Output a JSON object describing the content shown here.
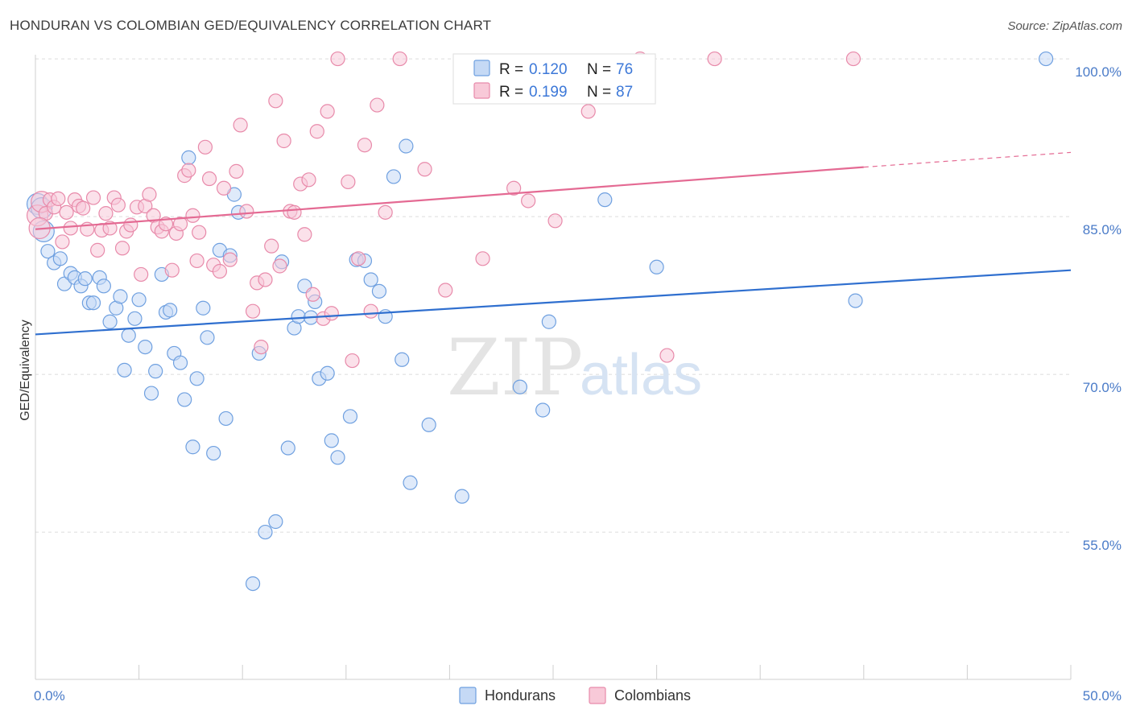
{
  "title": "HONDURAN VS COLOMBIAN GED/EQUIVALENCY CORRELATION CHART",
  "source": "Source: ZipAtlas.com",
  "watermark": {
    "zip": "ZIP",
    "atlas": "atlas"
  },
  "chart_data": {
    "type": "scatter",
    "xlabel": "",
    "ylabel": "GED/Equivalency",
    "xlim": [
      0,
      50
    ],
    "ylim": [
      41,
      101
    ],
    "x_tick_labels": {
      "left": "0.0%",
      "right": "50.0%"
    },
    "y_ticks": [
      {
        "value": 100,
        "label": "100.0%"
      },
      {
        "value": 85,
        "label": "85.0%"
      },
      {
        "value": 70,
        "label": "70.0%"
      },
      {
        "value": 55,
        "label": "55.0%"
      }
    ],
    "grid": true,
    "legend_top": [
      {
        "r_label": "R =",
        "r": "0.120",
        "n_label": "N =",
        "n": "76"
      },
      {
        "r_label": "R =",
        "r": "0.199",
        "n_label": "N =",
        "n": "87"
      }
    ],
    "series": [
      {
        "name": "Hondurans",
        "color": "#6fa0e0",
        "fill": "#c5d9f5",
        "trend": {
          "x": [
            0,
            50
          ],
          "y": [
            73.8,
            79.9
          ],
          "color": "#2f6fcf"
        },
        "points": [
          [
            0.1,
            86.2
          ],
          [
            0.3,
            85.8
          ],
          [
            0.4,
            83.6
          ],
          [
            0.6,
            81.7
          ],
          [
            0.9,
            80.6
          ],
          [
            1.2,
            81.0
          ],
          [
            1.4,
            78.6
          ],
          [
            1.7,
            79.6
          ],
          [
            1.9,
            79.2
          ],
          [
            2.2,
            78.4
          ],
          [
            2.4,
            79.1
          ],
          [
            2.6,
            76.8
          ],
          [
            2.8,
            76.8
          ],
          [
            3.1,
            79.2
          ],
          [
            3.3,
            78.4
          ],
          [
            3.6,
            75.0
          ],
          [
            3.9,
            76.3
          ],
          [
            4.1,
            77.4
          ],
          [
            4.3,
            70.4
          ],
          [
            4.5,
            73.7
          ],
          [
            4.8,
            75.3
          ],
          [
            5.0,
            77.1
          ],
          [
            5.3,
            72.6
          ],
          [
            5.6,
            68.2
          ],
          [
            5.8,
            70.3
          ],
          [
            6.1,
            79.5
          ],
          [
            6.3,
            75.9
          ],
          [
            6.5,
            76.1
          ],
          [
            6.7,
            72.0
          ],
          [
            7.0,
            71.1
          ],
          [
            7.2,
            67.6
          ],
          [
            7.4,
            90.6
          ],
          [
            7.6,
            63.1
          ],
          [
            7.8,
            69.6
          ],
          [
            8.1,
            76.3
          ],
          [
            8.3,
            73.5
          ],
          [
            8.6,
            62.5
          ],
          [
            8.9,
            81.8
          ],
          [
            9.2,
            65.8
          ],
          [
            9.4,
            81.3
          ],
          [
            9.6,
            87.1
          ],
          [
            9.8,
            85.4
          ],
          [
            10.5,
            50.1
          ],
          [
            10.8,
            72.0
          ],
          [
            11.1,
            55.0
          ],
          [
            11.6,
            56.0
          ],
          [
            11.9,
            80.7
          ],
          [
            12.2,
            63.0
          ],
          [
            12.5,
            74.4
          ],
          [
            12.7,
            75.5
          ],
          [
            13.0,
            78.4
          ],
          [
            13.3,
            75.4
          ],
          [
            13.5,
            76.9
          ],
          [
            13.7,
            69.6
          ],
          [
            14.1,
            70.1
          ],
          [
            14.3,
            63.7
          ],
          [
            14.6,
            62.1
          ],
          [
            15.2,
            66.0
          ],
          [
            15.5,
            80.9
          ],
          [
            15.9,
            80.8
          ],
          [
            16.2,
            79.0
          ],
          [
            16.6,
            77.9
          ],
          [
            16.9,
            75.5
          ],
          [
            17.3,
            88.8
          ],
          [
            17.7,
            71.4
          ],
          [
            17.9,
            91.7
          ],
          [
            18.1,
            59.7
          ],
          [
            19.0,
            65.2
          ],
          [
            20.6,
            58.4
          ],
          [
            23.4,
            68.8
          ],
          [
            24.5,
            66.6
          ],
          [
            24.8,
            75.0
          ],
          [
            27.5,
            86.6
          ],
          [
            30.0,
            80.2
          ],
          [
            39.6,
            77.0
          ],
          [
            48.8,
            100.0
          ]
        ]
      },
      {
        "name": "Colombians",
        "color": "#e88aaa",
        "fill": "#f8c9d8",
        "trend": {
          "x": [
            0,
            40
          ],
          "y": [
            83.8,
            89.7
          ],
          "dash_x": [
            40,
            50
          ],
          "dash_y": [
            89.7,
            91.1
          ],
          "color": "#e46a93"
        },
        "points": [
          [
            0.1,
            85.1
          ],
          [
            0.3,
            86.4
          ],
          [
            0.5,
            85.3
          ],
          [
            0.7,
            86.6
          ],
          [
            0.9,
            85.9
          ],
          [
            1.1,
            86.7
          ],
          [
            1.3,
            82.6
          ],
          [
            1.5,
            85.4
          ],
          [
            1.7,
            83.9
          ],
          [
            1.9,
            86.6
          ],
          [
            2.1,
            86.0
          ],
          [
            2.3,
            85.8
          ],
          [
            2.5,
            83.8
          ],
          [
            2.8,
            86.8
          ],
          [
            3.0,
            81.8
          ],
          [
            3.2,
            83.7
          ],
          [
            3.4,
            85.3
          ],
          [
            3.6,
            83.9
          ],
          [
            3.8,
            86.8
          ],
          [
            4.0,
            86.1
          ],
          [
            4.2,
            82.0
          ],
          [
            4.4,
            83.6
          ],
          [
            4.6,
            84.2
          ],
          [
            4.9,
            85.9
          ],
          [
            5.1,
            79.5
          ],
          [
            5.3,
            86.0
          ],
          [
            5.5,
            87.1
          ],
          [
            5.7,
            85.1
          ],
          [
            5.9,
            84.0
          ],
          [
            6.1,
            83.6
          ],
          [
            6.3,
            84.3
          ],
          [
            6.6,
            79.9
          ],
          [
            6.8,
            83.4
          ],
          [
            7.0,
            84.3
          ],
          [
            7.2,
            88.9
          ],
          [
            7.4,
            89.4
          ],
          [
            7.6,
            85.1
          ],
          [
            7.8,
            80.8
          ],
          [
            7.9,
            83.5
          ],
          [
            8.2,
            91.6
          ],
          [
            8.4,
            88.6
          ],
          [
            8.6,
            80.4
          ],
          [
            8.9,
            79.8
          ],
          [
            9.1,
            87.7
          ],
          [
            9.4,
            80.9
          ],
          [
            9.7,
            89.3
          ],
          [
            9.9,
            93.7
          ],
          [
            10.2,
            85.5
          ],
          [
            10.5,
            76.0
          ],
          [
            10.7,
            78.7
          ],
          [
            10.9,
            72.6
          ],
          [
            11.1,
            79.0
          ],
          [
            11.4,
            82.2
          ],
          [
            11.6,
            96.0
          ],
          [
            11.8,
            80.3
          ],
          [
            12.0,
            92.2
          ],
          [
            12.3,
            85.5
          ],
          [
            12.5,
            85.4
          ],
          [
            12.8,
            88.1
          ],
          [
            13.0,
            83.3
          ],
          [
            13.2,
            88.5
          ],
          [
            13.4,
            77.6
          ],
          [
            13.6,
            93.1
          ],
          [
            13.9,
            75.3
          ],
          [
            14.1,
            95.0
          ],
          [
            14.3,
            75.8
          ],
          [
            14.6,
            100.0
          ],
          [
            15.1,
            88.3
          ],
          [
            15.3,
            71.3
          ],
          [
            15.6,
            81.0
          ],
          [
            15.9,
            91.8
          ],
          [
            16.2,
            76.0
          ],
          [
            16.5,
            95.6
          ],
          [
            16.9,
            85.4
          ],
          [
            17.6,
            100.0
          ],
          [
            18.8,
            89.5
          ],
          [
            19.8,
            78.0
          ],
          [
            21.6,
            81.0
          ],
          [
            23.1,
            87.7
          ],
          [
            23.8,
            86.5
          ],
          [
            25.1,
            84.6
          ],
          [
            26.7,
            95.0
          ],
          [
            29.2,
            100.0
          ],
          [
            30.5,
            71.8
          ],
          [
            32.8,
            100.0
          ],
          [
            39.5,
            100.0
          ],
          [
            0.2,
            83.9
          ]
        ]
      }
    ]
  }
}
